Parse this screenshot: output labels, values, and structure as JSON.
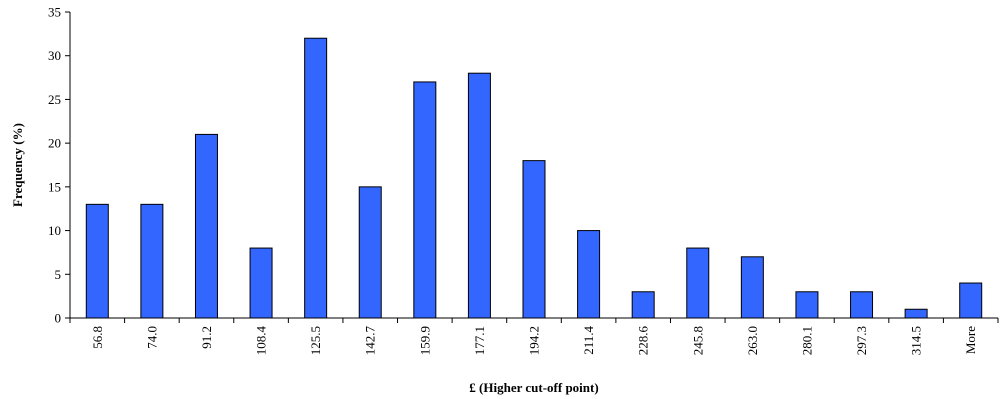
{
  "chart_data": {
    "type": "bar",
    "categories": [
      "56.8",
      "74.0",
      "91.2",
      "108.4",
      "125.5",
      "142.7",
      "159.9",
      "177.1",
      "194.2",
      "211.4",
      "228.6",
      "245.8",
      "263.0",
      "280.1",
      "297.3",
      "314.5",
      "More"
    ],
    "values": [
      13,
      13,
      21,
      8,
      32,
      15,
      27,
      28,
      18,
      10,
      3,
      8,
      7,
      3,
      3,
      1,
      4
    ],
    "title": "",
    "xlabel": "£ (Higher cut-off point)",
    "ylabel": "Frequency (%)",
    "ylim": [
      0,
      35
    ],
    "yticks": [
      0,
      5,
      10,
      15,
      20,
      25,
      30,
      35
    ],
    "grid": false,
    "legend": "none",
    "bar_color": "#3366ff"
  }
}
